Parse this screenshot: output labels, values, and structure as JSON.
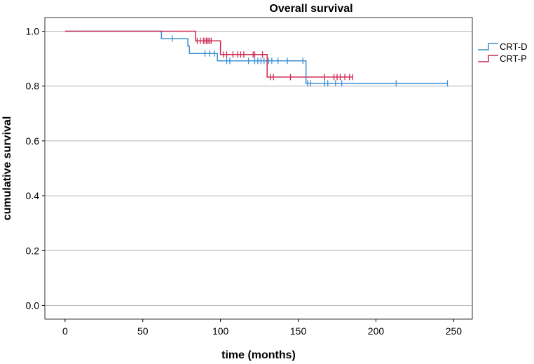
{
  "chart_data": {
    "type": "line",
    "subtype": "kaplan-meier",
    "title": "Overall survival",
    "xlabel": "time (months)",
    "ylabel": "cumulative survival",
    "xlim": [
      -13,
      262
    ],
    "ylim": [
      -0.05,
      1.05
    ],
    "xticks": [
      0,
      50,
      100,
      150,
      200,
      250
    ],
    "yticks": [
      0.0,
      0.2,
      0.4,
      0.6,
      0.8,
      1.0
    ],
    "xtick_labels": [
      "0",
      "50",
      "100",
      "150",
      "200",
      "250"
    ],
    "ytick_labels": [
      "0.0",
      "0.2",
      "0.4",
      "0.6",
      "0.8",
      "1.0"
    ],
    "grid": "horizontal",
    "legend_position": "top-right",
    "series": [
      {
        "name": "CRT-D",
        "color": "#3b8fd4",
        "steps": [
          [
            0,
            1.0
          ],
          [
            62,
            0.973
          ],
          [
            79,
            0.946
          ],
          [
            80,
            0.919
          ],
          [
            98,
            0.892
          ],
          [
            155,
            0.81
          ],
          [
            246,
            0.81
          ]
        ],
        "censored": [
          [
            69,
            0.973
          ],
          [
            90,
            0.919
          ],
          [
            93,
            0.919
          ],
          [
            96,
            0.919
          ],
          [
            104,
            0.892
          ],
          [
            106,
            0.892
          ],
          [
            118,
            0.892
          ],
          [
            122,
            0.892
          ],
          [
            124,
            0.892
          ],
          [
            126,
            0.892
          ],
          [
            128,
            0.892
          ],
          [
            131,
            0.892
          ],
          [
            133,
            0.892
          ],
          [
            137,
            0.892
          ],
          [
            143,
            0.892
          ],
          [
            153,
            0.892
          ],
          [
            156,
            0.81
          ],
          [
            158,
            0.81
          ],
          [
            167,
            0.81
          ],
          [
            169,
            0.81
          ],
          [
            174,
            0.81
          ],
          [
            178,
            0.81
          ],
          [
            213,
            0.81
          ],
          [
            246,
            0.81
          ]
        ]
      },
      {
        "name": "CRT-P",
        "color": "#cc2a52",
        "steps": [
          [
            0,
            1.0
          ],
          [
            84,
            0.965
          ],
          [
            100,
            0.915
          ],
          [
            130,
            0.833
          ],
          [
            185,
            0.833
          ]
        ],
        "censored": [
          [
            85,
            0.965
          ],
          [
            87,
            0.965
          ],
          [
            89,
            0.965
          ],
          [
            90,
            0.965
          ],
          [
            91,
            0.965
          ],
          [
            92,
            0.965
          ],
          [
            93,
            0.965
          ],
          [
            94,
            0.965
          ],
          [
            102,
            0.915
          ],
          [
            104,
            0.915
          ],
          [
            108,
            0.915
          ],
          [
            111,
            0.915
          ],
          [
            113,
            0.915
          ],
          [
            115,
            0.915
          ],
          [
            121,
            0.915
          ],
          [
            122,
            0.915
          ],
          [
            127,
            0.915
          ],
          [
            132,
            0.833
          ],
          [
            134,
            0.833
          ],
          [
            145,
            0.833
          ],
          [
            167,
            0.833
          ],
          [
            173,
            0.833
          ],
          [
            175,
            0.833
          ],
          [
            177,
            0.833
          ],
          [
            180,
            0.833
          ],
          [
            183,
            0.833
          ],
          [
            185,
            0.833
          ]
        ]
      }
    ]
  }
}
